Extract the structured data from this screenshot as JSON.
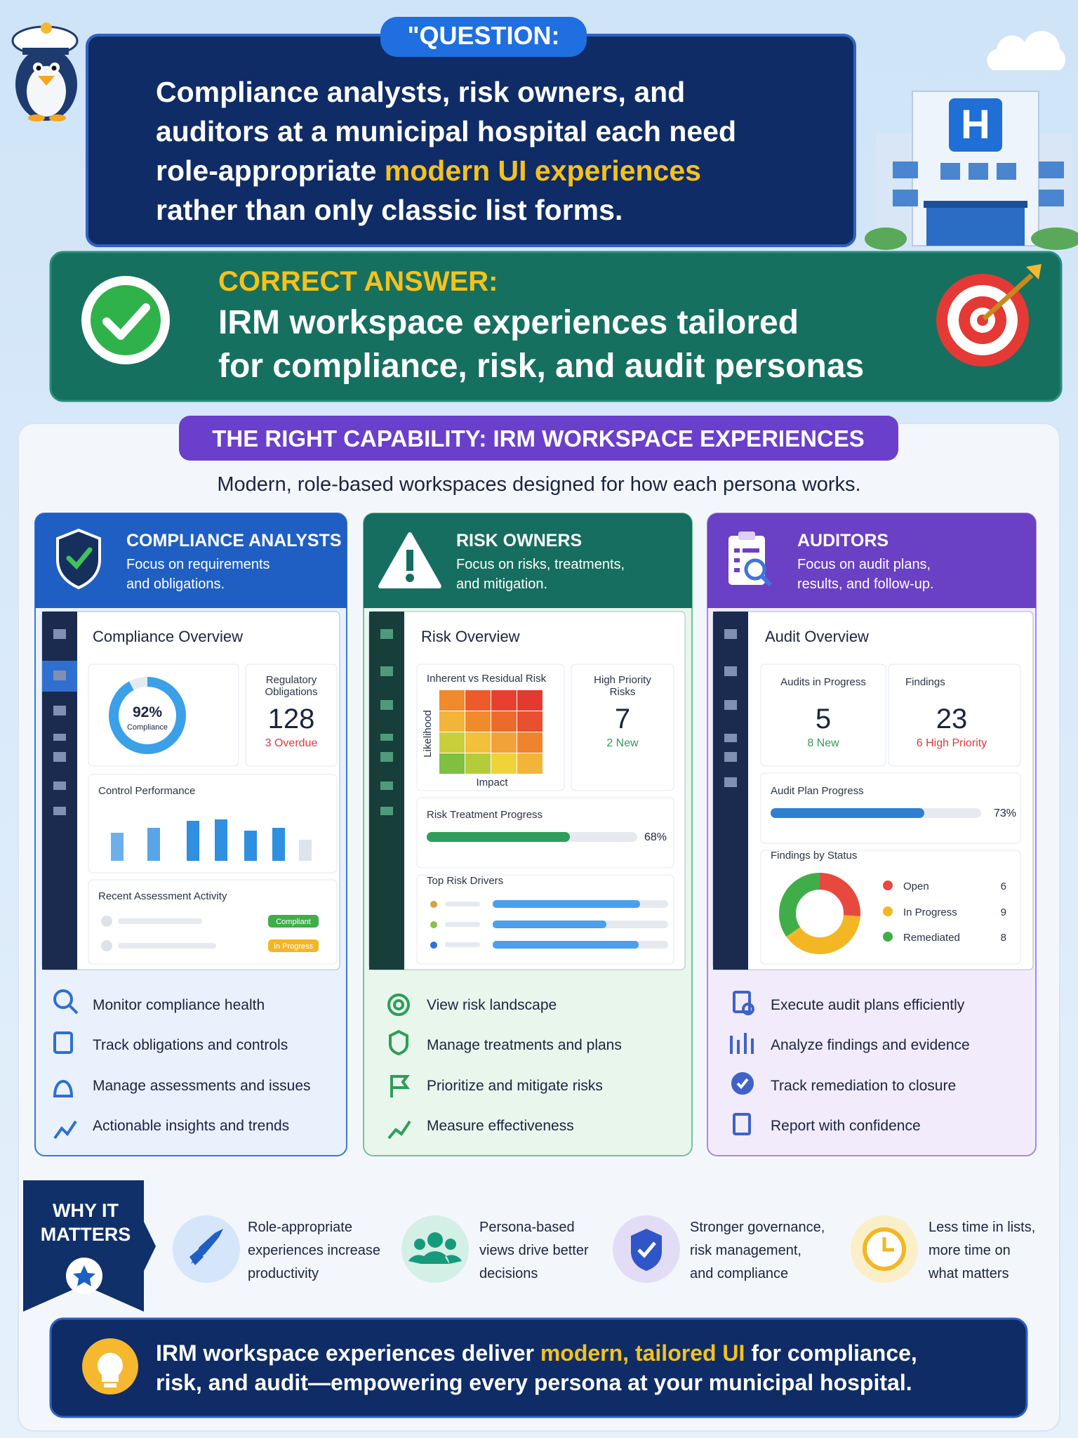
{
  "question": {
    "label": "\"QUESTION:",
    "lines": [
      [
        "Compliance analysts, risk owners, and"
      ],
      [
        "auditors at a municipal hospital each need"
      ],
      [
        "role-appropriate ",
        "modern UI experiences"
      ],
      [
        "rather than only classic list forms."
      ]
    ]
  },
  "answer": {
    "label": "CORRECT ANSWER:",
    "lines": [
      "IRM workspace experiences tailored",
      "for compliance, risk, and audit personas"
    ]
  },
  "capability": {
    "title": "THE RIGHT CAPABILITY: IRM WORKSPACE EXPERIENCES",
    "subtitle": "Modern, role-based workspaces designed for how each persona works."
  },
  "personas": [
    {
      "title": "COMPLIANCE ANALYSTS",
      "description": [
        "Focus on requirements",
        "and obligations."
      ],
      "dashboard": {
        "title": "Compliance Overview",
        "gauge": {
          "value": 92,
          "label": "92%",
          "caption": "Compliance"
        },
        "stat": {
          "label": [
            "Regulatory",
            "Obligations"
          ],
          "value": 128,
          "note": "3 Overdue"
        },
        "chart_title": "Control Performance",
        "activity_title": "Recent Assessment Activity",
        "badges": [
          "Compliant",
          "In Progress"
        ]
      },
      "features": [
        "Monitor compliance health",
        "Track obligations and controls",
        "Manage assessments and issues",
        "Actionable insights and trends"
      ]
    },
    {
      "title": "RISK OWNERS",
      "description": [
        "Focus on risks, treatments,",
        "and mitigation."
      ],
      "dashboard": {
        "title": "Risk Overview",
        "heatmap": {
          "title": "Inherent vs Residual Risk",
          "x_label": "Impact",
          "y_label": "Likelihood"
        },
        "stat": {
          "label": [
            "High Priority",
            "Risks"
          ],
          "value": 7,
          "note": "2 New"
        },
        "progress": {
          "title": "Risk Treatment Progress",
          "value": 68,
          "label": "68%"
        },
        "drivers_title": "Top Risk Drivers"
      },
      "features": [
        "View risk landscape",
        "Manage treatments and plans",
        "Prioritize and mitigate risks",
        "Measure effectiveness"
      ]
    },
    {
      "title": "AUDITORS",
      "description": [
        "Focus on audit plans,",
        "results, and follow-up."
      ],
      "dashboard": {
        "title": "Audit Overview",
        "stats": [
          {
            "label": "Audits in Progress",
            "value": 5,
            "note": "8 New"
          },
          {
            "label": "Findings",
            "value": 23,
            "note": "6 High Priority"
          }
        ],
        "progress": {
          "title": "Audit Plan Progress",
          "value": 73,
          "label": "73%"
        },
        "findings": {
          "title": "Findings by Status",
          "categories": [
            "Open",
            "In Progress",
            "Remediated"
          ],
          "values": [
            6,
            9,
            8
          ],
          "colors": [
            "#e8493f",
            "#f3b724",
            "#3fae49"
          ]
        }
      },
      "features": [
        "Execute audit plans efficiently",
        "Analyze findings and evidence",
        "Track remediation to closure",
        "Report with confidence"
      ]
    }
  ],
  "why": {
    "title": [
      "WHY IT",
      "MATTERS"
    ],
    "items": [
      [
        "Role-appropriate",
        "experiences increase",
        "productivity"
      ],
      [
        "Persona-based",
        "views drive better",
        "decisions"
      ],
      [
        "Stronger governance,",
        "risk management,",
        "and compliance"
      ],
      [
        "Less time in lists,",
        "more time on",
        "what matters"
      ]
    ]
  },
  "conclusion": {
    "lines": [
      [
        "IRM workspace experiences deliver ",
        "modern, tailored UI",
        " for compliance,"
      ],
      [
        "risk, and audit—empowering every persona at your municipal hospital."
      ]
    ]
  }
}
